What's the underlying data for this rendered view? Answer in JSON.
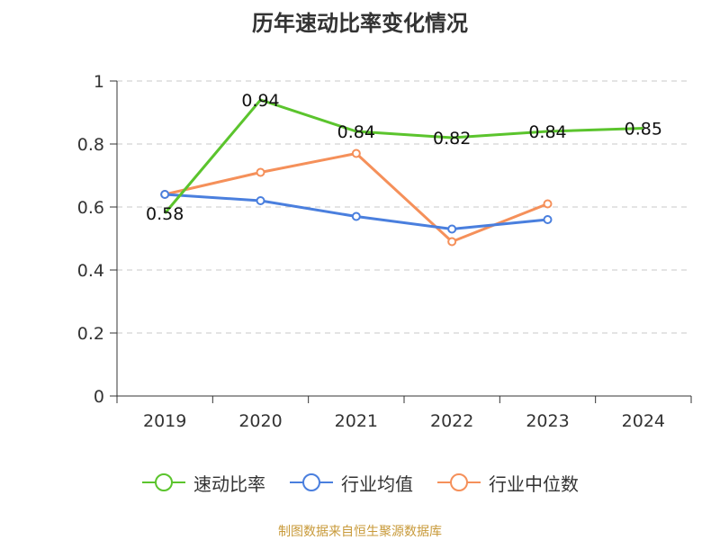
{
  "chart_data": {
    "type": "line",
    "title": "历年速动比率变化情况",
    "categories": [
      "2019",
      "2020",
      "2021",
      "2022",
      "2023",
      "2024"
    ],
    "y_ticks": [
      "0",
      "0.2",
      "0.4",
      "0.6",
      "0.8",
      "1"
    ],
    "ylim": [
      0,
      1
    ],
    "grid": true,
    "legend_position": "bottom",
    "series": [
      {
        "name": "速动比率",
        "color": "#5bc42d",
        "values": [
          0.58,
          0.94,
          0.84,
          0.82,
          0.84,
          0.85
        ],
        "labels": [
          "0.58",
          "0.94",
          "0.84",
          "0.82",
          "0.84",
          "0.85"
        ]
      },
      {
        "name": "行业均值",
        "color": "#4a7fde",
        "values": [
          0.64,
          0.62,
          0.57,
          0.53,
          0.56,
          null
        ]
      },
      {
        "name": "行业中位数",
        "color": "#f5905a",
        "values": [
          0.64,
          0.71,
          0.77,
          0.49,
          0.61,
          null
        ]
      }
    ]
  },
  "footer": {
    "source": "制图数据来自恒生聚源数据库"
  }
}
